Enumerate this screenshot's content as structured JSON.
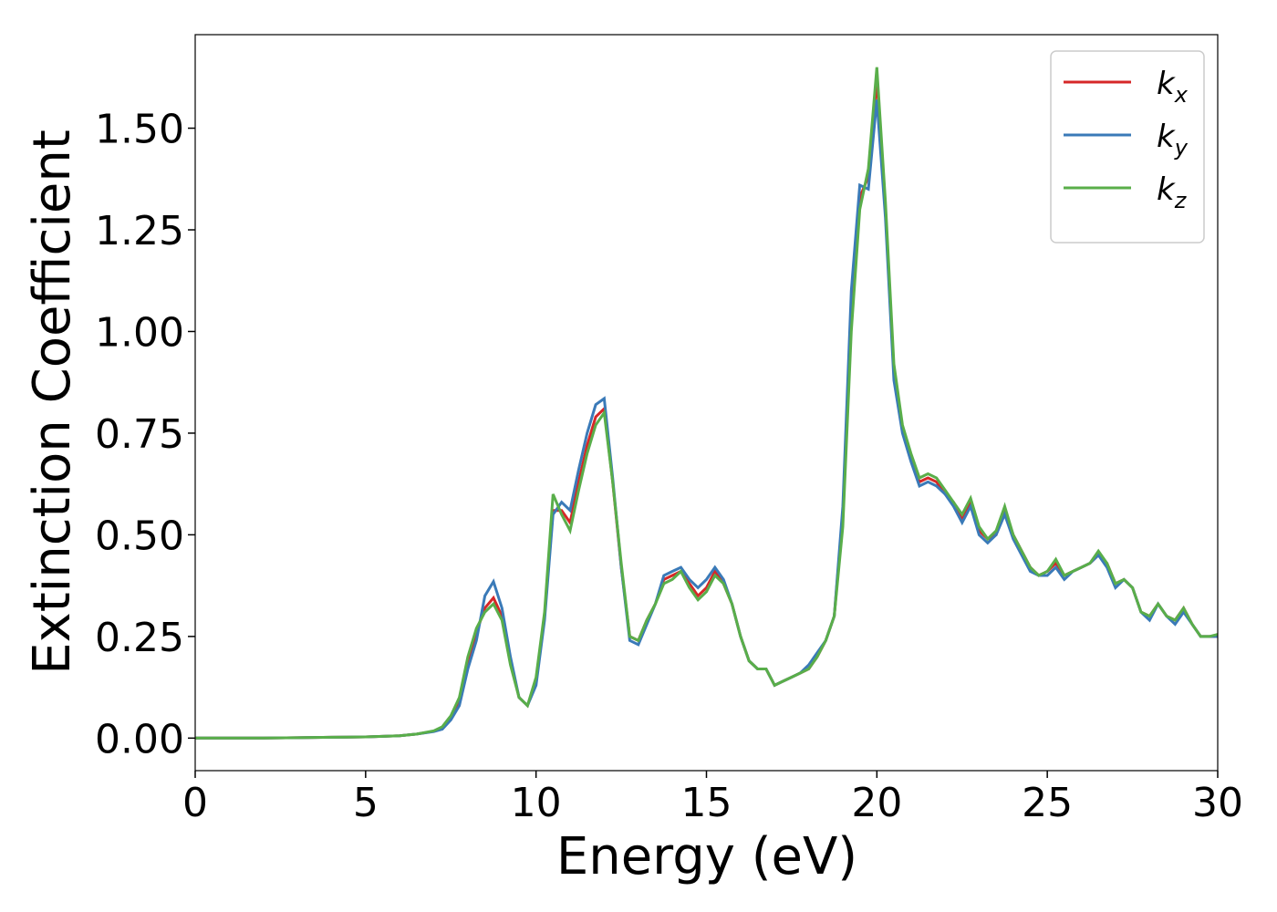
{
  "chart_data": {
    "type": "line",
    "xlabel": "Energy (eV)",
    "ylabel": "Extinction Coefficient",
    "x": [
      0,
      1,
      2,
      3,
      4,
      5,
      6,
      6.5,
      7,
      7.25,
      7.5,
      7.75,
      8,
      8.25,
      8.5,
      8.75,
      9,
      9.25,
      9.5,
      9.75,
      10,
      10.25,
      10.5,
      10.75,
      11,
      11.25,
      11.5,
      11.75,
      12,
      12.25,
      12.5,
      12.75,
      13,
      13.25,
      13.5,
      13.75,
      14,
      14.25,
      14.5,
      14.75,
      15,
      15.25,
      15.5,
      15.75,
      16,
      16.25,
      16.5,
      16.75,
      17,
      17.25,
      17.5,
      17.75,
      18,
      18.25,
      18.5,
      18.75,
      19,
      19.25,
      19.5,
      19.75,
      20,
      20.25,
      20.5,
      20.75,
      21,
      21.25,
      21.5,
      21.75,
      22,
      22.25,
      22.5,
      22.75,
      23,
      23.25,
      23.5,
      23.75,
      24,
      24.25,
      24.5,
      24.75,
      25,
      25.25,
      25.5,
      25.75,
      26,
      26.25,
      26.5,
      26.75,
      27,
      27.25,
      27.5,
      27.75,
      28,
      28.25,
      28.5,
      28.75,
      29,
      29.25,
      29.5,
      29.75,
      30
    ],
    "series": [
      {
        "name": "k_x",
        "color": "#d62728",
        "values": [
          0,
          0,
          0,
          0.001,
          0.002,
          0.003,
          0.006,
          0.01,
          0.017,
          0.025,
          0.05,
          0.09,
          0.19,
          0.26,
          0.32,
          0.345,
          0.3,
          0.19,
          0.1,
          0.08,
          0.14,
          0.3,
          0.56,
          0.56,
          0.53,
          0.63,
          0.72,
          0.79,
          0.81,
          0.63,
          0.42,
          0.25,
          0.24,
          0.29,
          0.33,
          0.39,
          0.4,
          0.41,
          0.38,
          0.35,
          0.37,
          0.41,
          0.38,
          0.33,
          0.25,
          0.19,
          0.17,
          0.17,
          0.13,
          0.14,
          0.15,
          0.16,
          0.17,
          0.2,
          0.24,
          0.3,
          0.55,
          1.05,
          1.33,
          1.38,
          1.62,
          1.3,
          0.9,
          0.76,
          0.69,
          0.63,
          0.64,
          0.63,
          0.6,
          0.58,
          0.54,
          0.58,
          0.51,
          0.49,
          0.5,
          0.56,
          0.5,
          0.46,
          0.42,
          0.4,
          0.41,
          0.43,
          0.4,
          0.41,
          0.42,
          0.43,
          0.45,
          0.43,
          0.38,
          0.39,
          0.37,
          0.31,
          0.3,
          0.33,
          0.3,
          0.29,
          0.32,
          0.28,
          0.25,
          0.25,
          0.25
        ]
      },
      {
        "name": "k_y",
        "color": "#3a7ab8",
        "values": [
          0,
          0,
          0,
          0.001,
          0.002,
          0.003,
          0.006,
          0.01,
          0.016,
          0.022,
          0.045,
          0.08,
          0.17,
          0.24,
          0.35,
          0.385,
          0.32,
          0.2,
          0.1,
          0.08,
          0.13,
          0.29,
          0.55,
          0.58,
          0.56,
          0.66,
          0.75,
          0.82,
          0.835,
          0.64,
          0.42,
          0.24,
          0.23,
          0.28,
          0.33,
          0.4,
          0.41,
          0.42,
          0.39,
          0.37,
          0.39,
          0.42,
          0.39,
          0.33,
          0.25,
          0.19,
          0.17,
          0.17,
          0.13,
          0.14,
          0.15,
          0.16,
          0.18,
          0.21,
          0.24,
          0.3,
          0.57,
          1.1,
          1.36,
          1.35,
          1.57,
          1.28,
          0.88,
          0.75,
          0.68,
          0.62,
          0.63,
          0.62,
          0.6,
          0.57,
          0.53,
          0.57,
          0.5,
          0.48,
          0.5,
          0.55,
          0.49,
          0.45,
          0.41,
          0.4,
          0.4,
          0.42,
          0.39,
          0.41,
          0.42,
          0.43,
          0.45,
          0.42,
          0.37,
          0.39,
          0.37,
          0.31,
          0.29,
          0.33,
          0.3,
          0.28,
          0.31,
          0.28,
          0.25,
          0.25,
          0.25
        ]
      },
      {
        "name": "k_z",
        "color": "#59ae4a",
        "values": [
          0,
          0,
          0,
          0.001,
          0.002,
          0.003,
          0.006,
          0.01,
          0.018,
          0.028,
          0.055,
          0.1,
          0.2,
          0.27,
          0.31,
          0.33,
          0.29,
          0.18,
          0.1,
          0.08,
          0.15,
          0.31,
          0.6,
          0.55,
          0.51,
          0.61,
          0.7,
          0.77,
          0.8,
          0.63,
          0.43,
          0.25,
          0.24,
          0.29,
          0.33,
          0.38,
          0.39,
          0.41,
          0.37,
          0.34,
          0.36,
          0.4,
          0.38,
          0.33,
          0.25,
          0.19,
          0.17,
          0.17,
          0.13,
          0.14,
          0.15,
          0.16,
          0.17,
          0.2,
          0.24,
          0.3,
          0.52,
          1.0,
          1.3,
          1.4,
          1.65,
          1.32,
          0.92,
          0.77,
          0.7,
          0.64,
          0.65,
          0.64,
          0.61,
          0.58,
          0.55,
          0.59,
          0.52,
          0.49,
          0.51,
          0.57,
          0.5,
          0.46,
          0.42,
          0.4,
          0.41,
          0.44,
          0.4,
          0.41,
          0.42,
          0.43,
          0.46,
          0.43,
          0.38,
          0.39,
          0.37,
          0.31,
          0.3,
          0.33,
          0.3,
          0.29,
          0.32,
          0.28,
          0.25,
          0.25,
          0.255
        ]
      }
    ],
    "xlim": [
      0,
      30
    ],
    "xticks": [
      0,
      5,
      10,
      15,
      20,
      25,
      30
    ],
    "ylim": [
      -0.08,
      1.73
    ],
    "yticks": [
      {
        "value": 0,
        "label": "0.00"
      },
      {
        "value": 0.25,
        "label": "0.25"
      },
      {
        "value": 0.5,
        "label": "0.50"
      },
      {
        "value": 0.75,
        "label": "0.75"
      },
      {
        "value": 1,
        "label": "1.00"
      },
      {
        "value": 1.25,
        "label": "1.25"
      },
      {
        "value": 1.5,
        "label": "1.50"
      }
    ],
    "legend": "upper right"
  }
}
